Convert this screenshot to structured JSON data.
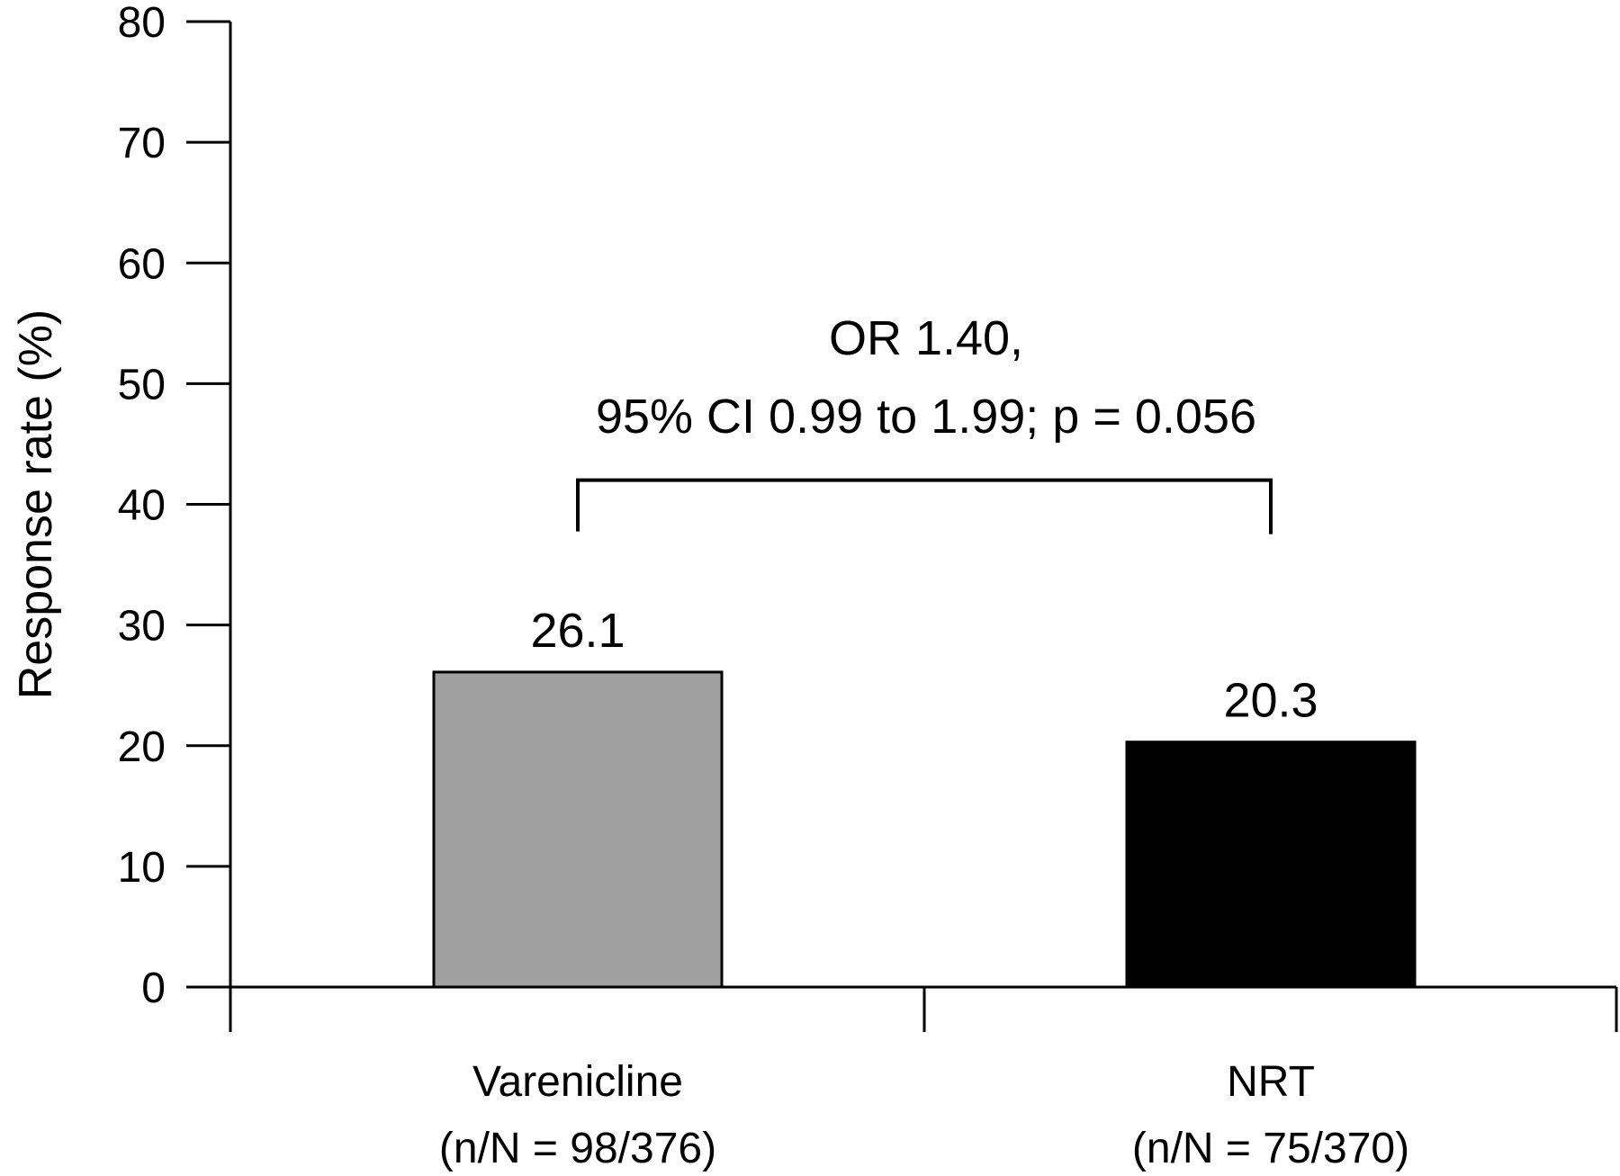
{
  "chart_data": {
    "type": "bar",
    "categories": [
      "Varenicline",
      "NRT"
    ],
    "category_sublabels": [
      "(n/N = 98/376)",
      "(n/N = 75/370)"
    ],
    "values": [
      26.1,
      20.3
    ],
    "data_labels": [
      "26.1",
      "20.3"
    ],
    "bar_colors": [
      "#a0a0a0",
      "#000000"
    ],
    "title": "",
    "xlabel": "",
    "ylabel": "Response rate (%)",
    "ylim": [
      0,
      80
    ],
    "yticks": [
      0,
      10,
      20,
      30,
      40,
      50,
      60,
      70,
      80
    ],
    "grid": false,
    "legend": "none",
    "annotation": {
      "line1": "OR 1.40,",
      "line2": "95% CI 0.99 to 1.99; p = 0.056",
      "bracket_value": 42
    }
  }
}
